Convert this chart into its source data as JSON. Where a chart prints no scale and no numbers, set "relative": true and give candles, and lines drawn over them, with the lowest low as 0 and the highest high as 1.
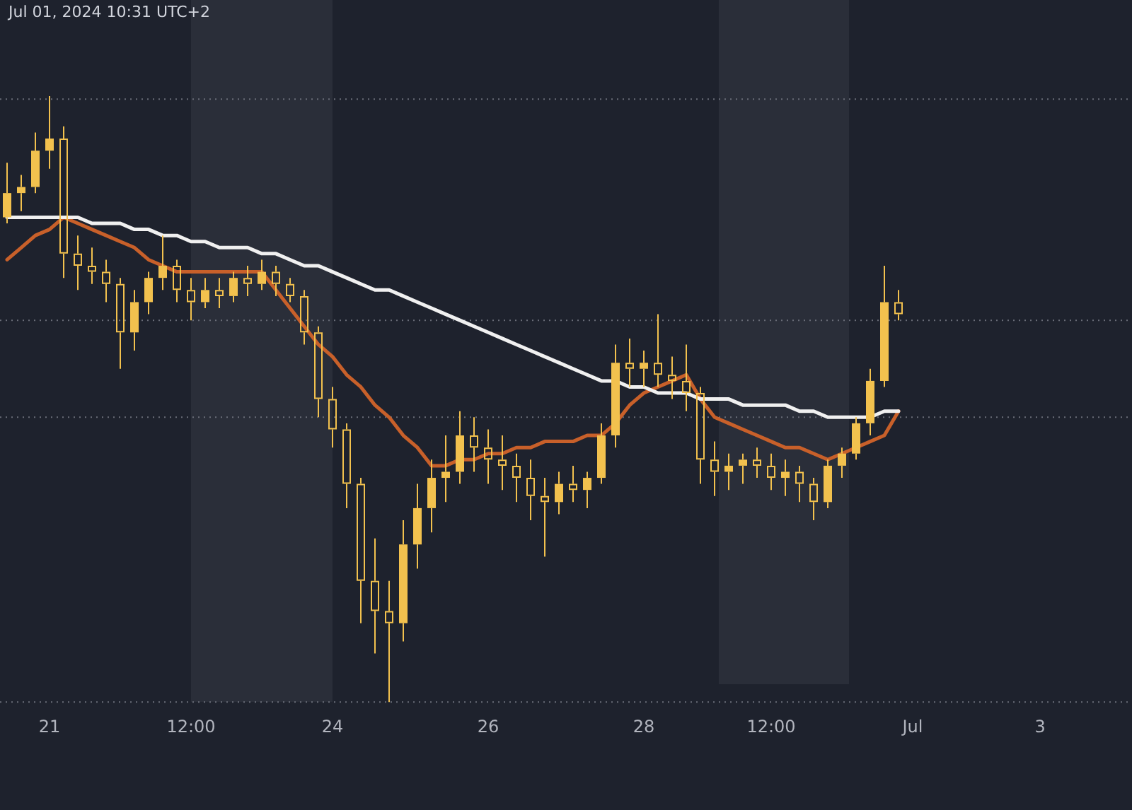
{
  "chart_data": {
    "type": "candlestick",
    "relative": true,
    "annotations": [
      "Jul 01, 2024 10:31 UTC+2"
    ],
    "categories": [
      null,
      null,
      null,
      "21",
      null,
      null,
      null,
      null,
      null,
      null,
      null,
      null,
      null,
      "12:00",
      null,
      null,
      null,
      null,
      null,
      null,
      null,
      null,
      null,
      "24",
      null,
      null,
      null,
      null,
      null,
      null,
      null,
      null,
      null,
      null,
      "26",
      null,
      null,
      null,
      null,
      null,
      null,
      null,
      null,
      null,
      null,
      "28",
      null,
      null,
      null,
      null,
      null,
      null,
      null,
      null,
      "12:00",
      null,
      null,
      null,
      null,
      null,
      null,
      null,
      null,
      null,
      "Jul",
      null,
      null,
      null,
      null,
      null,
      null,
      null,
      null,
      "3",
      null,
      null,
      null,
      null,
      null,
      null
    ],
    "ohlc": [
      [
        0.8,
        0.89,
        0.79,
        0.84
      ],
      [
        0.84,
        0.87,
        0.81,
        0.85
      ],
      [
        0.85,
        0.94,
        0.84,
        0.91
      ],
      [
        0.91,
        1.0,
        0.88,
        0.93
      ],
      [
        0.93,
        0.95,
        0.7,
        0.74
      ],
      [
        0.74,
        0.77,
        0.68,
        0.72
      ],
      [
        0.72,
        0.75,
        0.69,
        0.71
      ],
      [
        0.71,
        0.73,
        0.66,
        0.69
      ],
      [
        0.69,
        0.7,
        0.55,
        0.61
      ],
      [
        0.61,
        0.68,
        0.58,
        0.66
      ],
      [
        0.66,
        0.71,
        0.64,
        0.7
      ],
      [
        0.7,
        0.77,
        0.68,
        0.72
      ],
      [
        0.72,
        0.73,
        0.66,
        0.68
      ],
      [
        0.68,
        0.7,
        0.63,
        0.66
      ],
      [
        0.66,
        0.7,
        0.65,
        0.68
      ],
      [
        0.68,
        0.7,
        0.65,
        0.67
      ],
      [
        0.67,
        0.71,
        0.66,
        0.7
      ],
      [
        0.7,
        0.72,
        0.67,
        0.69
      ],
      [
        0.69,
        0.73,
        0.68,
        0.71
      ],
      [
        0.71,
        0.72,
        0.67,
        0.69
      ],
      [
        0.69,
        0.7,
        0.66,
        0.67
      ],
      [
        0.67,
        0.68,
        0.59,
        0.61
      ],
      [
        0.61,
        0.62,
        0.47,
        0.5
      ],
      [
        0.5,
        0.52,
        0.42,
        0.45
      ],
      [
        0.45,
        0.46,
        0.32,
        0.36
      ],
      [
        0.36,
        0.37,
        0.13,
        0.2
      ],
      [
        0.2,
        0.27,
        0.08,
        0.15
      ],
      [
        0.15,
        0.2,
        0.0,
        0.13
      ],
      [
        0.13,
        0.3,
        0.1,
        0.26
      ],
      [
        0.26,
        0.36,
        0.22,
        0.32
      ],
      [
        0.32,
        0.4,
        0.28,
        0.37
      ],
      [
        0.37,
        0.44,
        0.33,
        0.38
      ],
      [
        0.38,
        0.48,
        0.36,
        0.44
      ],
      [
        0.44,
        0.47,
        0.38,
        0.42
      ],
      [
        0.42,
        0.45,
        0.36,
        0.4
      ],
      [
        0.4,
        0.44,
        0.35,
        0.39
      ],
      [
        0.39,
        0.41,
        0.33,
        0.37
      ],
      [
        0.37,
        0.4,
        0.3,
        0.34
      ],
      [
        0.34,
        0.37,
        0.24,
        0.33
      ],
      [
        0.33,
        0.38,
        0.31,
        0.36
      ],
      [
        0.36,
        0.39,
        0.33,
        0.35
      ],
      [
        0.35,
        0.38,
        0.32,
        0.37
      ],
      [
        0.37,
        0.46,
        0.36,
        0.44
      ],
      [
        0.44,
        0.59,
        0.42,
        0.56
      ],
      [
        0.56,
        0.6,
        0.52,
        0.55
      ],
      [
        0.55,
        0.58,
        0.52,
        0.56
      ],
      [
        0.56,
        0.64,
        0.52,
        0.54
      ],
      [
        0.54,
        0.57,
        0.5,
        0.53
      ],
      [
        0.53,
        0.59,
        0.48,
        0.51
      ],
      [
        0.51,
        0.52,
        0.36,
        0.4
      ],
      [
        0.4,
        0.43,
        0.34,
        0.38
      ],
      [
        0.38,
        0.41,
        0.35,
        0.39
      ],
      [
        0.39,
        0.41,
        0.36,
        0.4
      ],
      [
        0.4,
        0.42,
        0.37,
        0.39
      ],
      [
        0.39,
        0.41,
        0.35,
        0.37
      ],
      [
        0.37,
        0.4,
        0.34,
        0.38
      ],
      [
        0.38,
        0.39,
        0.33,
        0.36
      ],
      [
        0.36,
        0.37,
        0.3,
        0.33
      ],
      [
        0.33,
        0.4,
        0.32,
        0.39
      ],
      [
        0.39,
        0.42,
        0.37,
        0.41
      ],
      [
        0.41,
        0.47,
        0.4,
        0.46
      ],
      [
        0.46,
        0.55,
        0.44,
        0.53
      ],
      [
        0.53,
        0.72,
        0.52,
        0.66
      ],
      [
        0.66,
        0.68,
        0.63,
        0.64
      ],
      null,
      null,
      null,
      null,
      null,
      null,
      null,
      null,
      null,
      null,
      null,
      null,
      null,
      null,
      null,
      null
    ],
    "color": "#f2c14e",
    "series": [
      {
        "type": "line",
        "color": "#f0f0f0",
        "values": [
          0.8,
          0.8,
          0.8,
          0.8,
          0.8,
          0.8,
          0.79,
          0.79,
          0.79,
          0.78,
          0.78,
          0.77,
          0.77,
          0.76,
          0.76,
          0.75,
          0.75,
          0.75,
          0.74,
          0.74,
          0.73,
          0.72,
          0.72,
          0.71,
          0.7,
          0.69,
          0.68,
          0.68,
          0.67,
          0.66,
          0.65,
          0.64,
          0.63,
          0.62,
          0.61,
          0.6,
          0.59,
          0.58,
          0.57,
          0.56,
          0.55,
          0.54,
          0.53,
          0.53,
          0.52,
          0.52,
          0.51,
          0.51,
          0.51,
          0.5,
          0.5,
          0.5,
          0.49,
          0.49,
          0.49,
          0.49,
          0.48,
          0.48,
          0.47,
          0.47,
          0.47,
          0.47,
          0.48,
          0.48,
          null,
          null,
          null,
          null,
          null,
          null,
          null,
          null,
          null,
          null,
          null,
          null,
          null,
          null,
          null,
          null
        ]
      },
      {
        "type": "line",
        "color": "#c8602a",
        "values": [
          0.73,
          0.75,
          0.77,
          0.78,
          0.8,
          0.79,
          0.78,
          0.77,
          0.76,
          0.75,
          0.73,
          0.72,
          0.71,
          0.71,
          0.71,
          0.71,
          0.71,
          0.71,
          0.71,
          0.68,
          0.65,
          0.62,
          0.59,
          0.57,
          0.54,
          0.52,
          0.49,
          0.47,
          0.44,
          0.42,
          0.39,
          0.39,
          0.4,
          0.4,
          0.41,
          0.41,
          0.42,
          0.42,
          0.43,
          0.43,
          0.43,
          0.44,
          0.44,
          0.46,
          0.49,
          0.51,
          0.52,
          0.53,
          0.54,
          0.5,
          0.47,
          0.46,
          0.45,
          0.44,
          0.43,
          0.42,
          0.42,
          0.41,
          0.4,
          0.41,
          0.42,
          0.43,
          0.44,
          0.48,
          null,
          null,
          null,
          null,
          null,
          null,
          null,
          null,
          null,
          null,
          null,
          null,
          null,
          null,
          null,
          null
        ]
      }
    ],
    "ref_lines": [
      {
        "axis": "y",
        "value": 0.995,
        "line_style": "dotted"
      },
      {
        "axis": "y",
        "value": 0.63,
        "line_style": "dotted"
      },
      {
        "axis": "y",
        "value": 0.47,
        "line_style": "dotted"
      },
      {
        "axis": "y",
        "value": 0,
        "line_style": "dotted"
      }
    ],
    "bands": [
      {
        "axis": "x",
        "from": "12:00",
        "to": "24",
        "color": "#2a2e39"
      }
    ],
    "grid": false,
    "legend": false
  }
}
